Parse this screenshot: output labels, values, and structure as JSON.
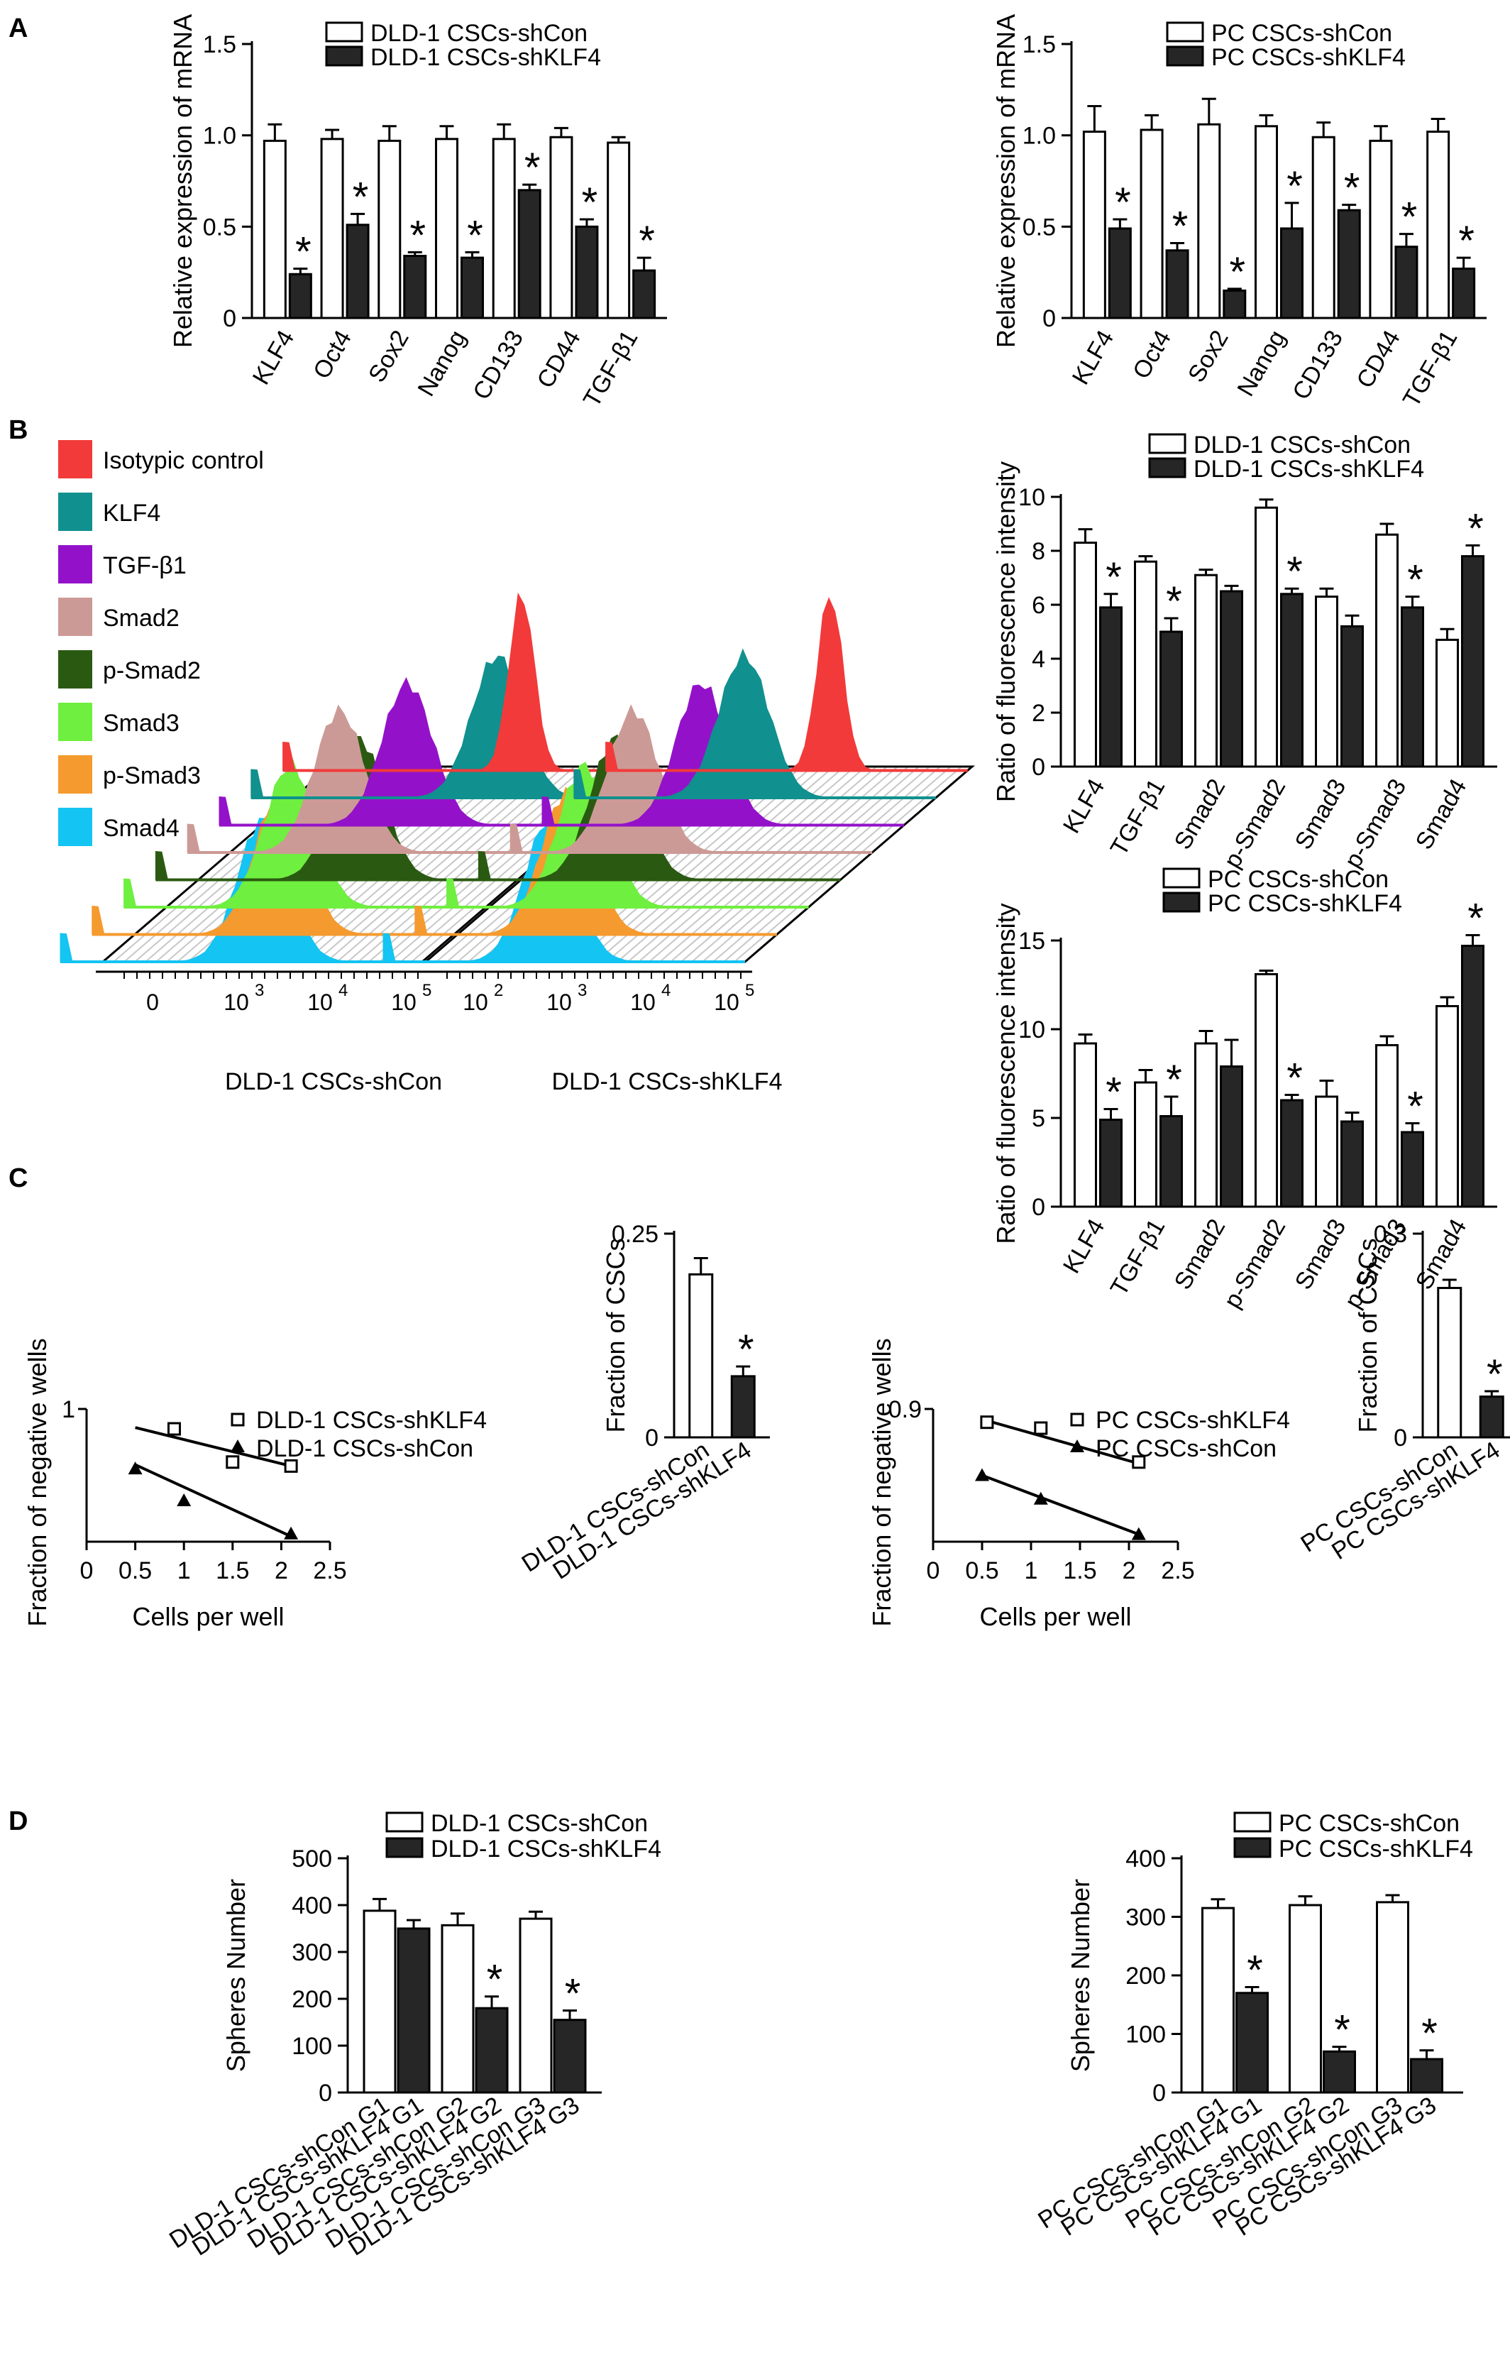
{
  "panels": {
    "A": "A",
    "B": "B",
    "C": "C",
    "D": "D"
  },
  "colors": {
    "open": "#ffffff",
    "filled": "#262626",
    "axis": "#000000"
  },
  "chart_data": [
    {
      "id": "A1",
      "type": "bar",
      "ylabel": "Relative expression of mRNA",
      "ylim": [
        0,
        1.5
      ],
      "yticks": [
        "0",
        "0.5",
        "1.0",
        "1.5"
      ],
      "categories": [
        "KLF4",
        "Oct4",
        "Sox2",
        "Nanog",
        "CD133",
        "CD44",
        "TGF-β1"
      ],
      "series": [
        {
          "name": "DLD-1 CSCs-shCon",
          "style": "open",
          "values": [
            0.97,
            0.98,
            0.97,
            0.98,
            0.98,
            0.99,
            0.96
          ],
          "errors": [
            0.09,
            0.05,
            0.08,
            0.07,
            0.08,
            0.05,
            0.03
          ]
        },
        {
          "name": "DLD-1 CSCs-shKLF4",
          "style": "filled",
          "values": [
            0.24,
            0.51,
            0.34,
            0.33,
            0.7,
            0.5,
            0.26
          ],
          "errors": [
            0.03,
            0.06,
            0.02,
            0.03,
            0.03,
            0.04,
            0.07
          ]
        }
      ],
      "sig": [
        1,
        1,
        1,
        1,
        1,
        1,
        1
      ]
    },
    {
      "id": "A2",
      "type": "bar",
      "ylabel": "Relative expression of mRNA",
      "ylim": [
        0,
        1.5
      ],
      "yticks": [
        "0",
        "0.5",
        "1.0",
        "1.5"
      ],
      "categories": [
        "KLF4",
        "Oct4",
        "Sox2",
        "Nanog",
        "CD133",
        "CD44",
        "TGF-β1"
      ],
      "series": [
        {
          "name": "PC CSCs-shCon",
          "style": "open",
          "values": [
            1.02,
            1.03,
            1.06,
            1.05,
            0.99,
            0.97,
            1.02
          ],
          "errors": [
            0.14,
            0.08,
            0.14,
            0.06,
            0.08,
            0.08,
            0.07
          ]
        },
        {
          "name": "PC CSCs-shKLF4",
          "style": "filled",
          "values": [
            0.49,
            0.37,
            0.15,
            0.49,
            0.59,
            0.39,
            0.27
          ],
          "errors": [
            0.05,
            0.04,
            0.01,
            0.14,
            0.03,
            0.07,
            0.06
          ]
        }
      ],
      "sig": [
        1,
        1,
        1,
        1,
        1,
        1,
        1
      ]
    },
    {
      "id": "B1",
      "type": "bar",
      "ylabel": "Ratio of fluorescence intensity",
      "ylim": [
        0,
        10
      ],
      "yticks": [
        "0",
        "2",
        "4",
        "6",
        "8",
        "10"
      ],
      "categories": [
        "KLF4",
        "TGF-β1",
        "Smad2",
        "p-Smad2",
        "Smad3",
        "p-Smad3",
        "Smad4"
      ],
      "series": [
        {
          "name": "DLD-1 CSCs-shCon",
          "style": "open",
          "values": [
            8.3,
            7.6,
            7.1,
            9.6,
            6.3,
            8.6,
            4.7
          ],
          "errors": [
            0.5,
            0.2,
            0.2,
            0.3,
            0.3,
            0.4,
            0.4
          ]
        },
        {
          "name": "DLD-1 CSCs-shKLF4",
          "style": "filled",
          "values": [
            5.9,
            5.0,
            6.5,
            6.4,
            5.2,
            5.9,
            7.8
          ],
          "errors": [
            0.5,
            0.5,
            0.2,
            0.2,
            0.4,
            0.4,
            0.4
          ]
        }
      ],
      "sig": [
        1,
        1,
        0,
        1,
        0,
        1,
        1
      ]
    },
    {
      "id": "B2",
      "type": "bar",
      "ylabel": "Ratio of fluorescence intensity",
      "ylim": [
        0,
        15
      ],
      "yticks": [
        "0",
        "5",
        "10",
        "15"
      ],
      "categories": [
        "KLF4",
        "TGF-β1",
        "Smad2",
        "p-Smad2",
        "Smad3",
        "p-Smad3",
        "Smad4"
      ],
      "series": [
        {
          "name": "PC CSCs-shCon",
          "style": "open",
          "values": [
            9.2,
            7.0,
            9.2,
            13.1,
            6.2,
            9.1,
            11.3
          ],
          "errors": [
            0.5,
            0.7,
            0.7,
            0.2,
            0.9,
            0.5,
            0.5
          ]
        },
        {
          "name": "PC CSCs-shKLF4",
          "style": "filled",
          "values": [
            4.9,
            5.1,
            7.9,
            6.0,
            4.8,
            4.2,
            14.7
          ],
          "errors": [
            0.6,
            1.1,
            1.5,
            0.3,
            0.5,
            0.5,
            0.6
          ]
        }
      ],
      "sig": [
        1,
        1,
        0,
        1,
        0,
        1,
        1
      ]
    },
    {
      "id": "C1",
      "type": "scatter",
      "xlabel": "Cells per well",
      "ylabel": "Fraction of negative wells",
      "xlim": [
        0,
        2.5
      ],
      "ylim": [
        0,
        1
      ],
      "xticks": [
        "0",
        "0.5",
        "1",
        "1.5",
        "2",
        "2.5"
      ],
      "ytop_label": "1",
      "series": [
        {
          "name": "DLD-1 CSCs-shKLF4",
          "marker": "square",
          "x": [
            0.9,
            1.5,
            2.1
          ],
          "y": [
            0.85,
            0.6,
            0.57
          ],
          "fit": [
            [
              0.5,
              0.86
            ],
            [
              2.1,
              0.57
            ]
          ]
        },
        {
          "name": "DLD-1 CSCs-shCon",
          "marker": "triangle",
          "x": [
            0.5,
            1.0,
            2.1
          ],
          "y": [
            0.55,
            0.31,
            0.06
          ],
          "fit": [
            [
              0.5,
              0.58
            ],
            [
              2.1,
              0.04
            ]
          ]
        }
      ]
    },
    {
      "id": "C2",
      "type": "bar",
      "ylabel": "Fraction of CSCs",
      "ylim": [
        0,
        0.25
      ],
      "yticks": [
        "0",
        "0.25"
      ],
      "categories": [
        "DLD-1 CSCs-shCon",
        "DLD-1 CSCs-shKLF4"
      ],
      "values": [
        0.2,
        0.075
      ],
      "errors": [
        0.02,
        0.012
      ],
      "styles": [
        "open",
        "filled"
      ],
      "sig": [
        0,
        1
      ]
    },
    {
      "id": "C3",
      "type": "scatter",
      "xlabel": "Cells per well",
      "ylabel": "Fraction of negative wells",
      "xlim": [
        0,
        2.5
      ],
      "ylim": [
        0,
        0.9
      ],
      "xticks": [
        "0",
        "0.5",
        "1",
        "1.5",
        "2",
        "2.5"
      ],
      "ytop_label": "0.9",
      "series": [
        {
          "name": "PC CSCs-shKLF4",
          "marker": "square",
          "x": [
            0.55,
            1.1,
            2.1
          ],
          "y": [
            0.81,
            0.77,
            0.54
          ],
          "fit": [
            [
              0.5,
              0.83
            ],
            [
              2.1,
              0.53
            ]
          ]
        },
        {
          "name": "PC CSCs-shCon",
          "marker": "triangle",
          "x": [
            0.5,
            1.1,
            2.1
          ],
          "y": [
            0.45,
            0.29,
            0.05
          ],
          "fit": [
            [
              0.5,
              0.45
            ],
            [
              2.1,
              0.05
            ]
          ]
        }
      ]
    },
    {
      "id": "C4",
      "type": "bar",
      "ylabel": "Fraction of CSCs",
      "ylim": [
        0,
        0.3
      ],
      "yticks": [
        "0",
        "0.3"
      ],
      "categories": [
        "PC CSCs-shCon",
        "PC CSCs-shKLF4"
      ],
      "values": [
        0.22,
        0.06
      ],
      "errors": [
        0.012,
        0.008
      ],
      "styles": [
        "open",
        "filled"
      ],
      "sig": [
        0,
        1
      ]
    },
    {
      "id": "D1",
      "type": "bar",
      "ylabel": "Spheres Number",
      "ylim": [
        0,
        500
      ],
      "yticks": [
        "0",
        "100",
        "200",
        "300",
        "400",
        "500"
      ],
      "categories": [
        "G1",
        "G2",
        "G3"
      ],
      "tick_labels": [
        "DLD-1 CSCs-shCon G1",
        "DLD-1 CSCs-shKLF4 G1",
        "DLD-1 CSCs-shCon G2",
        "DLD-1 CSCs-shKLF4 G2",
        "DLD-1 CSCs-shCon G3",
        "DLD-1 CSCs-shKLF4 G3"
      ],
      "series": [
        {
          "name": "DLD-1 CSCs-shCon",
          "style": "open",
          "values": [
            388,
            357,
            371
          ],
          "errors": [
            25,
            25,
            15
          ]
        },
        {
          "name": "DLD-1 CSCs-shKLF4",
          "style": "filled",
          "values": [
            350,
            180,
            155
          ],
          "errors": [
            18,
            25,
            20
          ]
        }
      ],
      "sig": [
        0,
        1,
        1
      ]
    },
    {
      "id": "D2",
      "type": "bar",
      "ylabel": "Spheres Number",
      "ylim": [
        0,
        400
      ],
      "yticks": [
        "0",
        "100",
        "200",
        "300",
        "400"
      ],
      "categories": [
        "G1",
        "G2",
        "G3"
      ],
      "tick_labels": [
        "PC CSCs-shCon G1",
        "PC CSCs-shKLF4 G1",
        "PC CSCs-shCon G2",
        "PC CSCs-shKLF4 G2",
        "PC CSCs-shCon G3",
        "PC CSCs-shKLF4 G3"
      ],
      "series": [
        {
          "name": "PC CSCs-shCon",
          "style": "open",
          "values": [
            315,
            320,
            325
          ],
          "errors": [
            15,
            15,
            12
          ]
        },
        {
          "name": "PC CSCs-shKLF4",
          "style": "filled",
          "values": [
            170,
            70,
            57
          ],
          "errors": [
            10,
            8,
            15
          ]
        }
      ],
      "sig": [
        1,
        1,
        1
      ]
    }
  ],
  "flow": {
    "legend": [
      {
        "label": "Isotypic control",
        "color": "#f23a3a"
      },
      {
        "label": "KLF4",
        "color": "#10908e"
      },
      {
        "label": "TGF-β1",
        "color": "#9312c9"
      },
      {
        "label": "Smad2",
        "color": "#cc9a96"
      },
      {
        "label": "p-Smad2",
        "color": "#2a5a12"
      },
      {
        "label": "Smad3",
        "color": "#6fef3f"
      },
      {
        "label": "p-Smad3",
        "color": "#f59a2e"
      },
      {
        "label": "Smad4",
        "color": "#14c4f2"
      }
    ],
    "panels": [
      {
        "caption": "DLD-1 CSCs-shCon",
        "xticks": [
          "0",
          "10",
          "10",
          "10"
        ],
        "xexps": [
          "",
          "3",
          "4",
          "5"
        ],
        "peaks": [
          0.66,
          0.68,
          0.52,
          0.42,
          0.56,
          0.46,
          0.52,
          0.56
        ]
      },
      {
        "caption": "DLD-1 CSCs-shKLF4",
        "xticks": [
          "10",
          "10",
          "10",
          "10"
        ],
        "xexps": [
          "2",
          "3",
          "4",
          "5"
        ],
        "peaks": [
          0.62,
          0.47,
          0.44,
          0.34,
          0.38,
          0.38,
          0.42,
          0.46
        ]
      }
    ]
  }
}
